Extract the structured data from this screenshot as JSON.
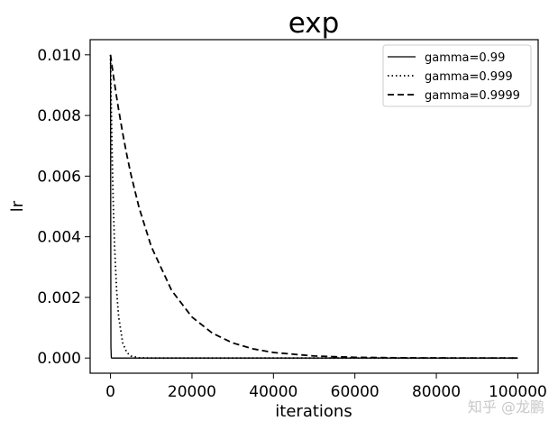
{
  "chart_data": {
    "type": "line",
    "title": "exp",
    "xlabel": "iterations",
    "ylabel": "lr",
    "xlim": [
      -5000,
      105000
    ],
    "ylim": [
      -0.0005,
      0.0105
    ],
    "xticks": [
      0,
      20000,
      40000,
      60000,
      80000,
      100000
    ],
    "xtick_labels": [
      "0",
      "20000",
      "40000",
      "60000",
      "80000",
      "100000"
    ],
    "yticks": [
      0.0,
      0.002,
      0.004,
      0.006,
      0.008,
      0.01
    ],
    "ytick_labels": [
      "0.000",
      "0.002",
      "0.004",
      "0.006",
      "0.008",
      "0.010"
    ],
    "grid": false,
    "legend_position": "top-right",
    "x": [
      0,
      100,
      200,
      300,
      500,
      700,
      1000,
      1500,
      2000,
      3000,
      4000,
      5000,
      7000,
      10000,
      15000,
      20000,
      25000,
      30000,
      35000,
      40000,
      50000,
      60000,
      70000,
      80000,
      90000,
      100000
    ],
    "series": [
      {
        "name": "gamma=0.99",
        "line_style": "solid",
        "values": [
          0.01,
          0.000366,
          1.34e-05,
          5e-07,
          0,
          0,
          0,
          0,
          0,
          0,
          0,
          0,
          0,
          0,
          0,
          0,
          0,
          0,
          0,
          0,
          0,
          0,
          0,
          0,
          0,
          0
        ]
      },
      {
        "name": "gamma=0.999",
        "line_style": "dotted",
        "values": [
          0.01,
          0.009048,
          0.008187,
          0.007408,
          0.006065,
          0.004966,
          0.003679,
          0.002231,
          0.001353,
          0.000498,
          0.000183,
          6.74e-05,
          9.1e-06,
          5e-07,
          0,
          0,
          0,
          0,
          0,
          0,
          0,
          0,
          0,
          0,
          0,
          0
        ]
      },
      {
        "name": "gamma=0.9999",
        "line_style": "dashed",
        "values": [
          0.01,
          0.0099,
          0.0098,
          0.0097,
          0.00951,
          0.00932,
          0.009048,
          0.008607,
          0.008187,
          0.007408,
          0.006703,
          0.006065,
          0.004966,
          0.003679,
          0.002231,
          0.001353,
          0.000821,
          0.000498,
          0.000302,
          0.000183,
          6.74e-05,
          2.48e-05,
          9.1e-06,
          3.4e-06,
          1.2e-06,
          5e-07
        ]
      }
    ]
  },
  "colors": {
    "line": "#000000",
    "background": "#ffffff",
    "watermark": "#c8c8c8"
  },
  "watermark": "知乎 @龙鹏"
}
